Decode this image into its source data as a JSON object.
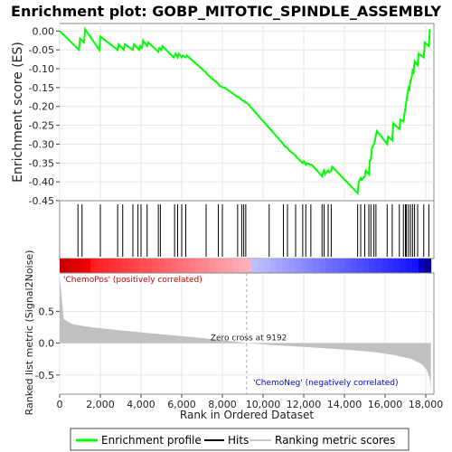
{
  "chart_data": {
    "type": "line",
    "title": "Enrichment plot: GOBP_MITOTIC_SPINDLE_ASSEMBLY",
    "xlabel": "Rank in Ordered Dataset",
    "ylabel_top": "Enrichment score (ES)",
    "ylabel_bottom": "Ranked list metric (Signal2Noise)",
    "xlim": [
      0,
      18400
    ],
    "top_ylim": [
      -0.45,
      0.02
    ],
    "bottom_ylim": [
      -0.8,
      1.1
    ],
    "x_ticks": [
      0,
      2000,
      4000,
      6000,
      8000,
      10000,
      12000,
      14000,
      16000,
      18000
    ],
    "x_tick_labels": [
      "0",
      "2,000",
      "4,000",
      "6,000",
      "8,000",
      "10,000",
      "12,000",
      "14,000",
      "16,000",
      "18,000"
    ],
    "top_y_ticks": [
      0.0,
      -0.05,
      -0.1,
      -0.15,
      -0.2,
      -0.25,
      -0.3,
      -0.35,
      -0.4,
      -0.45
    ],
    "top_y_tick_labels": [
      "0.00",
      "-0.05",
      "-0.10",
      "-0.15",
      "-0.20",
      "-0.25",
      "-0.30",
      "-0.35",
      "-0.40",
      "-0.45"
    ],
    "bottom_y_ticks": [
      0.5,
      0.0,
      -0.5
    ],
    "bottom_y_tick_labels": [
      "0.5",
      "0.0",
      "-0.5"
    ],
    "series": [
      {
        "name": "Enrichment profile",
        "color": "#00ff00",
        "x": [
          0,
          950,
          1000,
          1200,
          1250,
          1950,
          2000,
          2850,
          2900,
          3150,
          3200,
          3600,
          3650,
          3900,
          3950,
          4050,
          4100,
          4300,
          4350,
          4850,
          4900,
          5000,
          5050,
          5600,
          5700,
          5800,
          5850,
          6000,
          6050,
          6200,
          6250,
          7200,
          7250,
          7800,
          7850,
          8050,
          8100,
          8750,
          8800,
          9000,
          9050,
          9150,
          9200,
          11000,
          11050,
          11200,
          11250,
          11600,
          11650,
          11950,
          12000,
          12100,
          12150,
          12350,
          12400,
          12900,
          12950,
          13000,
          13050,
          13200,
          13250,
          13350,
          13400,
          14650,
          14700,
          14800,
          14850,
          15000,
          15050,
          15200,
          15250,
          15300,
          15350,
          15450,
          15500,
          15550,
          15600,
          16100,
          16150,
          16350,
          16400,
          16700,
          16750,
          16900,
          16950,
          17000,
          17050,
          17100,
          17150,
          17200,
          17250,
          17300,
          17350,
          17400,
          17450,
          17600,
          17650,
          17900,
          17950,
          18150,
          18200
        ],
        "y": [
          0.0,
          -0.05,
          -0.02,
          -0.03,
          0.005,
          -0.05,
          -0.015,
          -0.05,
          -0.035,
          -0.05,
          -0.035,
          -0.05,
          -0.035,
          -0.05,
          -0.04,
          -0.045,
          -0.025,
          -0.04,
          -0.03,
          -0.055,
          -0.045,
          -0.05,
          -0.04,
          -0.07,
          -0.06,
          -0.07,
          -0.06,
          -0.07,
          -0.065,
          -0.07,
          -0.065,
          -0.11,
          -0.115,
          -0.14,
          -0.145,
          -0.15,
          -0.15,
          -0.175,
          -0.175,
          -0.185,
          -0.185,
          -0.19,
          -0.19,
          -0.3,
          -0.305,
          -0.31,
          -0.315,
          -0.33,
          -0.335,
          -0.35,
          -0.345,
          -0.355,
          -0.35,
          -0.355,
          -0.355,
          -0.385,
          -0.375,
          -0.37,
          -0.38,
          -0.37,
          -0.375,
          -0.37,
          -0.36,
          -0.43,
          -0.4,
          -0.39,
          -0.395,
          -0.385,
          -0.37,
          -0.38,
          -0.345,
          -0.34,
          -0.31,
          -0.3,
          -0.29,
          -0.275,
          -0.265,
          -0.3,
          -0.28,
          -0.29,
          -0.245,
          -0.26,
          -0.235,
          -0.24,
          -0.22,
          -0.205,
          -0.185,
          -0.165,
          -0.15,
          -0.155,
          -0.13,
          -0.125,
          -0.105,
          -0.11,
          -0.08,
          -0.09,
          -0.06,
          -0.07,
          -0.03,
          -0.04,
          0.005
        ]
      }
    ],
    "hits_x": [
      900,
      1100,
      2000,
      2850,
      3100,
      3600,
      3850,
      4000,
      4300,
      4850,
      4950,
      5650,
      5800,
      6000,
      6200,
      7200,
      7800,
      8000,
      8750,
      8950,
      9050,
      9150,
      10300,
      11000,
      11200,
      11600,
      11950,
      12100,
      12350,
      12900,
      13000,
      13200,
      13350,
      14650,
      14800,
      15000,
      15200,
      15300,
      15450,
      15550,
      16100,
      16350,
      16700,
      16900,
      17000,
      17050,
      17150,
      17250,
      17350,
      17450,
      17600,
      17900,
      18150
    ],
    "zero_cross": 9192,
    "zero_cross_label": "Zero cross at 9192",
    "pos_label": "'ChemoPos' (positively correlated)",
    "neg_label": "'ChemoNeg' (negatively correlated)",
    "metric_curve": {
      "x": [
        0,
        200,
        600,
        1500,
        3000,
        5000,
        7000,
        8500,
        9192,
        10500,
        12000,
        14000,
        15500,
        16500,
        17300,
        17800,
        18050,
        18200,
        18250
      ],
      "y": [
        1.05,
        0.38,
        0.3,
        0.25,
        0.2,
        0.14,
        0.08,
        0.03,
        0.0,
        -0.03,
        -0.06,
        -0.1,
        -0.14,
        -0.19,
        -0.25,
        -0.33,
        -0.42,
        -0.55,
        -0.75
      ]
    },
    "legend": {
      "items": [
        {
          "label": "Enrichment profile",
          "color": "#00ff00"
        },
        {
          "label": "Hits",
          "color": "#000000"
        },
        {
          "label": "Ranking metric scores",
          "color": "#c8c8c8"
        }
      ]
    }
  }
}
